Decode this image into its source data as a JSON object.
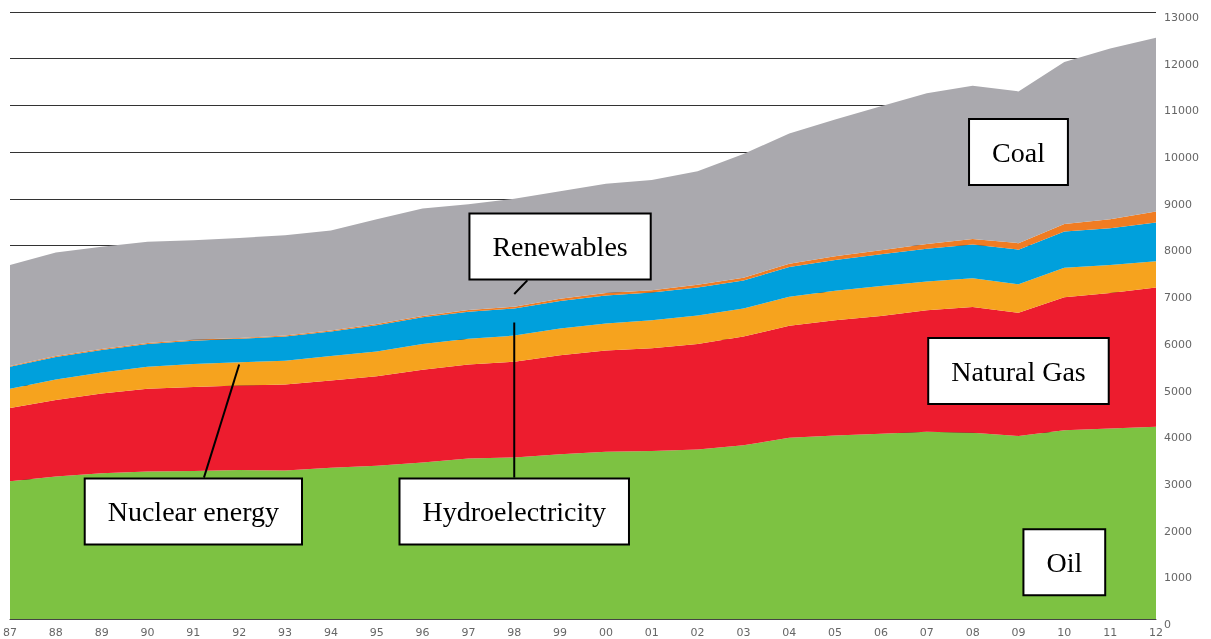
{
  "chart_data": {
    "type": "area",
    "stacked": true,
    "categories": [
      "87",
      "88",
      "89",
      "90",
      "91",
      "92",
      "93",
      "94",
      "95",
      "96",
      "97",
      "98",
      "99",
      "00",
      "01",
      "02",
      "03",
      "04",
      "05",
      "06",
      "07",
      "08",
      "09",
      "10",
      "11",
      "12"
    ],
    "series": [
      {
        "name": "Oil",
        "color": "#7dc242",
        "values": [
          2950,
          3050,
          3120,
          3160,
          3170,
          3190,
          3180,
          3240,
          3280,
          3350,
          3440,
          3460,
          3530,
          3580,
          3600,
          3630,
          3720,
          3880,
          3930,
          3970,
          4010,
          3990,
          3920,
          4040,
          4080,
          4120
        ]
      },
      {
        "name": "Natural Gas",
        "color": "#ed1c2e",
        "values": [
          1570,
          1640,
          1710,
          1770,
          1800,
          1810,
          1840,
          1870,
          1920,
          1990,
          2010,
          2050,
          2120,
          2170,
          2200,
          2260,
          2330,
          2400,
          2470,
          2520,
          2600,
          2690,
          2640,
          2850,
          2900,
          2980
        ]
      },
      {
        "name": "Nuclear energy",
        "color": "#f6a31e",
        "values": [
          410,
          440,
          450,
          470,
          490,
          500,
          510,
          520,
          530,
          550,
          550,
          560,
          570,
          580,
          600,
          610,
          600,
          620,
          630,
          640,
          620,
          620,
          610,
          630,
          600,
          560
        ]
      },
      {
        "name": "Hydroelectricity",
        "color": "#00a0dc",
        "values": [
          470,
          480,
          480,
          490,
          500,
          500,
          520,
          530,
          560,
          570,
          580,
          580,
          590,
          600,
          590,
          600,
          600,
          640,
          660,
          680,
          700,
          720,
          740,
          780,
          790,
          830
        ]
      },
      {
        "name": "Renewables",
        "color": "#f07c22",
        "values": [
          20,
          20,
          20,
          20,
          20,
          20,
          20,
          20,
          30,
          30,
          40,
          40,
          50,
          50,
          50,
          60,
          60,
          70,
          80,
          90,
          100,
          120,
          140,
          160,
          190,
          240
        ]
      },
      {
        "name": "Coal",
        "color": "#aaa9ae",
        "values": [
          2160,
          2220,
          2190,
          2170,
          2130,
          2140,
          2150,
          2140,
          2240,
          2300,
          2260,
          2310,
          2300,
          2340,
          2360,
          2430,
          2650,
          2790,
          2930,
          3080,
          3230,
          3280,
          3250,
          3470,
          3660,
          3720
        ]
      }
    ],
    "ylim": [
      0,
      13000
    ],
    "yticks": [
      0,
      1000,
      2000,
      3000,
      4000,
      5000,
      6000,
      7000,
      8000,
      9000,
      10000,
      11000,
      12000,
      13000
    ],
    "grid": "y",
    "legend": false
  }
}
